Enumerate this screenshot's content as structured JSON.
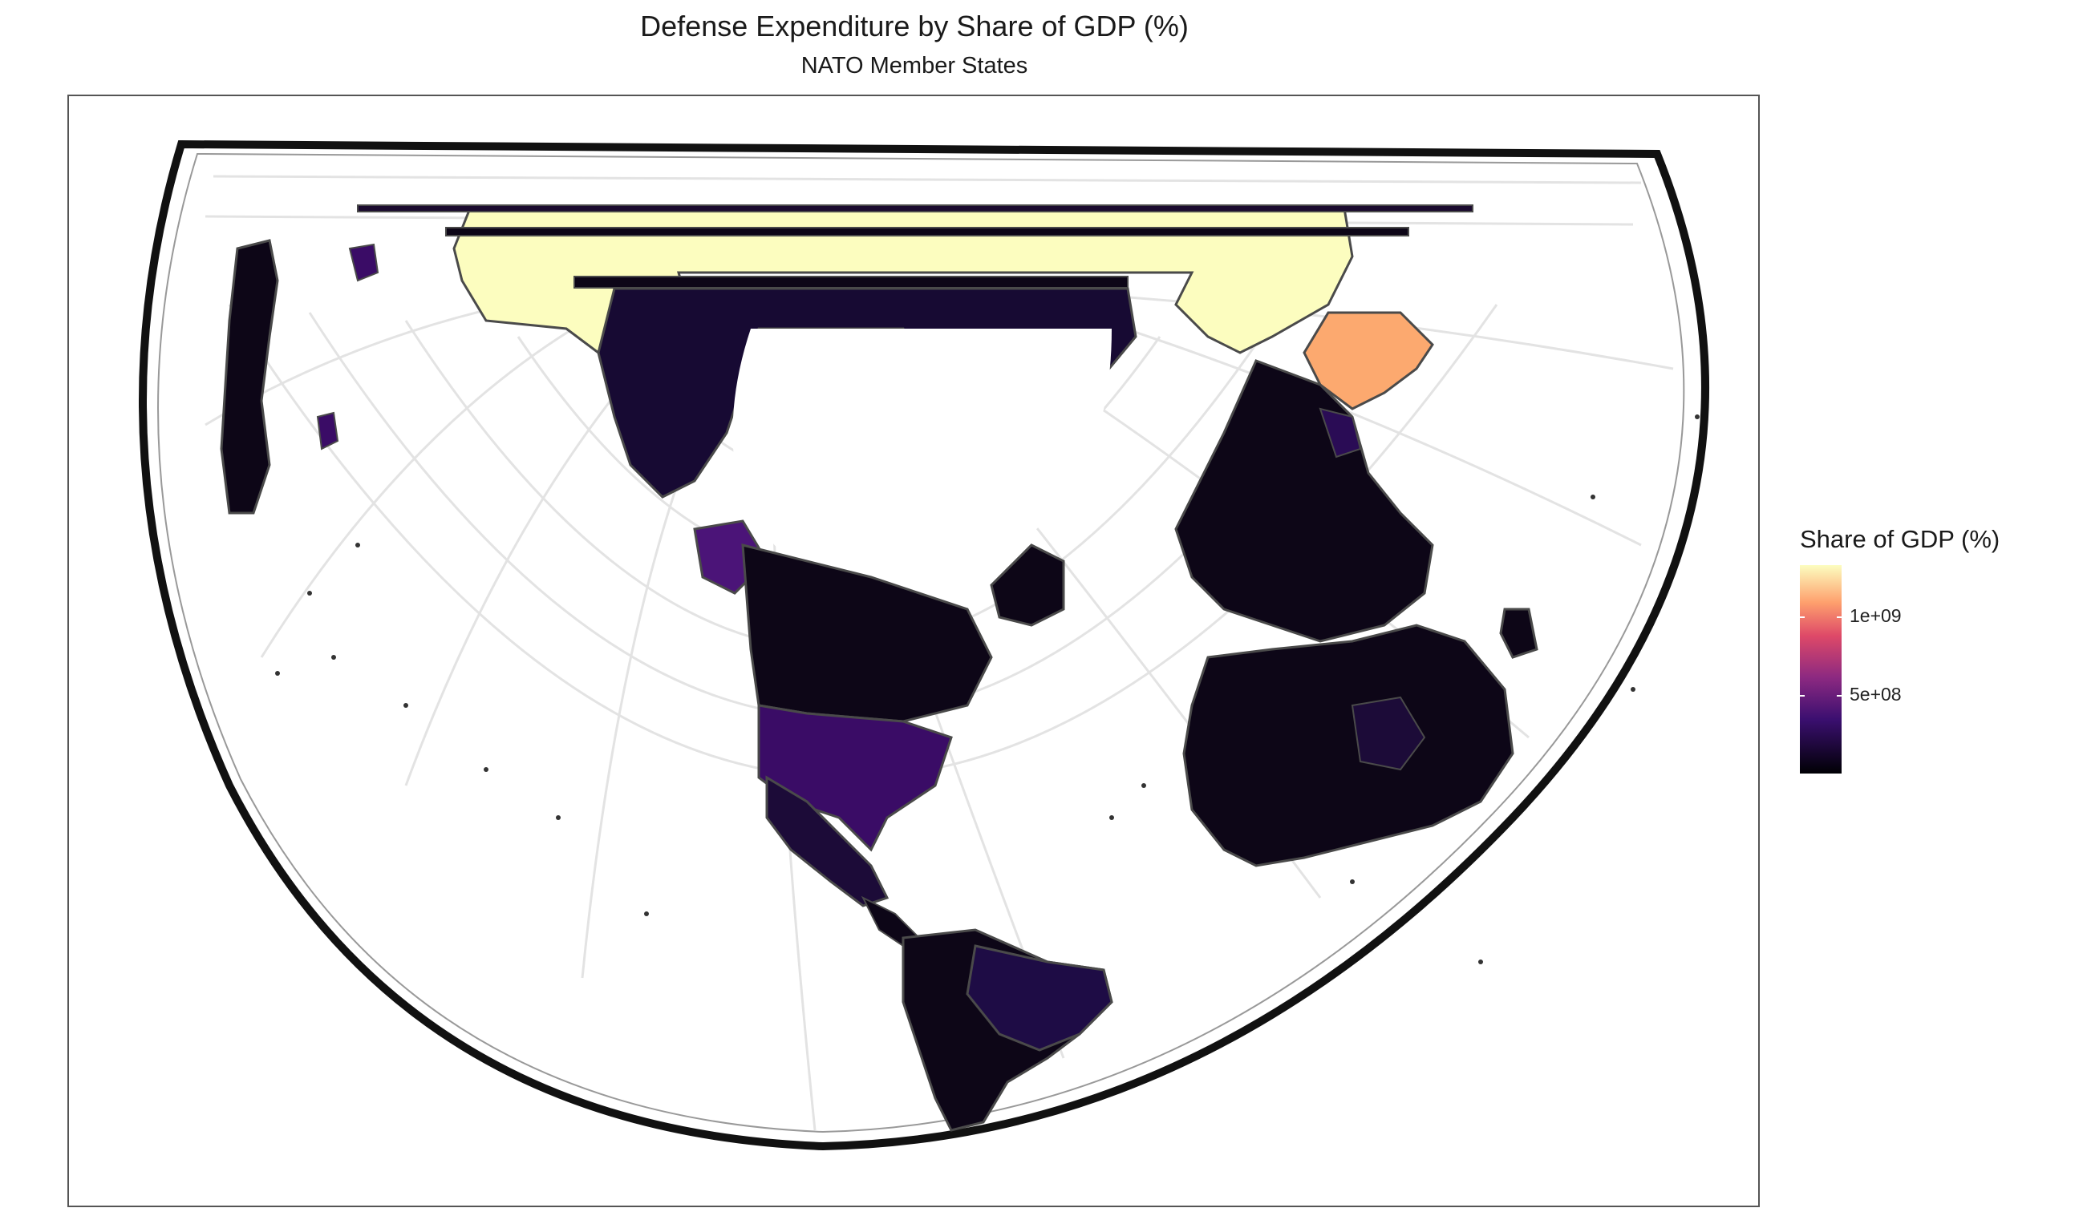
{
  "title": "Defense Expenditure by Share of GDP (%)",
  "subtitle": "NATO Member States",
  "legend": {
    "title": "Share of GDP (%)",
    "scale": "magma",
    "range": [
      0,
      1300000000
    ],
    "ticks": [
      {
        "value": 1000000000,
        "label": "1e+09"
      },
      {
        "value": 500000000,
        "label": "5e+08"
      }
    ]
  },
  "colors": {
    "background": "#ffffff",
    "graticule": "#e3e3e3",
    "country_border": "#4a4a4a",
    "low": "#0d0617",
    "usa": "#3a0c66",
    "high_yellow": "#fcfdbf",
    "high_orange": "#fca96f"
  }
}
